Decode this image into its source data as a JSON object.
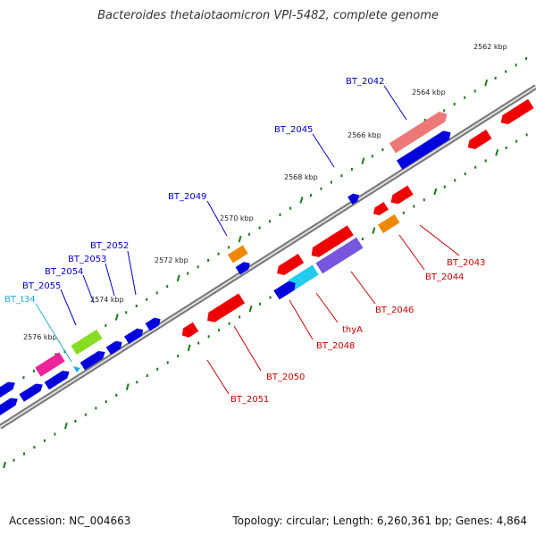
{
  "title": "Bacteroides thetaiotaomicron VPI-5482, complete genome",
  "footer": {
    "accession": "Accession: NC_004663",
    "summary": "Topology: circular; Length: 6,260,361 bp; Genes: 4,864"
  },
  "colors": {
    "backbone": "#808080",
    "ticks": "#1a7a1a",
    "forward_label": "#0000cc",
    "reverse_label": "#cc0000",
    "trna_label": "#22aadd"
  },
  "kbp_markers": [
    {
      "label": "2562 kbp"
    },
    {
      "label": "2564 kbp"
    },
    {
      "label": "2566 kbp"
    },
    {
      "label": "2568 kbp"
    },
    {
      "label": "2570 kbp"
    },
    {
      "label": "2572 kbp"
    },
    {
      "label": "2574 kbp"
    },
    {
      "label": "2576 kbp"
    }
  ],
  "gene_labels": [
    {
      "name": "BT_2042",
      "strand": "forward"
    },
    {
      "name": "BT_2045",
      "strand": "forward"
    },
    {
      "name": "BT_2049",
      "strand": "forward"
    },
    {
      "name": "BT_2052",
      "strand": "forward"
    },
    {
      "name": "BT_2053",
      "strand": "forward"
    },
    {
      "name": "BT_2054",
      "strand": "forward"
    },
    {
      "name": "BT_2055",
      "strand": "forward"
    },
    {
      "name": "BT_t34",
      "strand": "trna"
    },
    {
      "name": "BT_2043",
      "strand": "reverse"
    },
    {
      "name": "BT_2044",
      "strand": "reverse"
    },
    {
      "name": "BT_2046",
      "strand": "reverse"
    },
    {
      "name": "thyA",
      "strand": "reverse"
    },
    {
      "name": "BT_2048",
      "strand": "reverse"
    },
    {
      "name": "BT_2050",
      "strand": "reverse"
    },
    {
      "name": "BT_2051",
      "strand": "reverse"
    }
  ]
}
